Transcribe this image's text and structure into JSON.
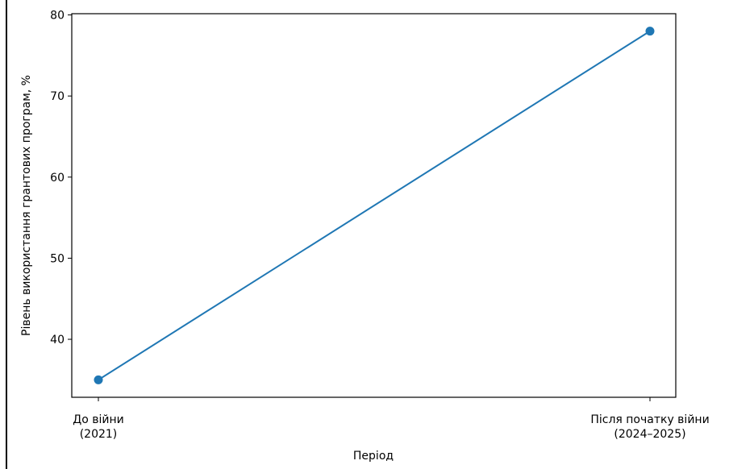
{
  "chart_data": {
    "type": "line",
    "title": "",
    "xlabel": "Період",
    "ylabel": "Рівень використання грантових програм, %",
    "categories": [
      [
        "До війни",
        "(2021)"
      ],
      [
        "Після початку війни",
        "(2024–2025)"
      ]
    ],
    "series": [
      {
        "values": [
          35,
          78
        ],
        "color": "#1f77b4",
        "marker": "circle"
      }
    ],
    "yticks": [
      40,
      50,
      60,
      70,
      80
    ],
    "ylim": [
      32.85,
      80.15
    ],
    "grid": false,
    "legend": "none"
  }
}
